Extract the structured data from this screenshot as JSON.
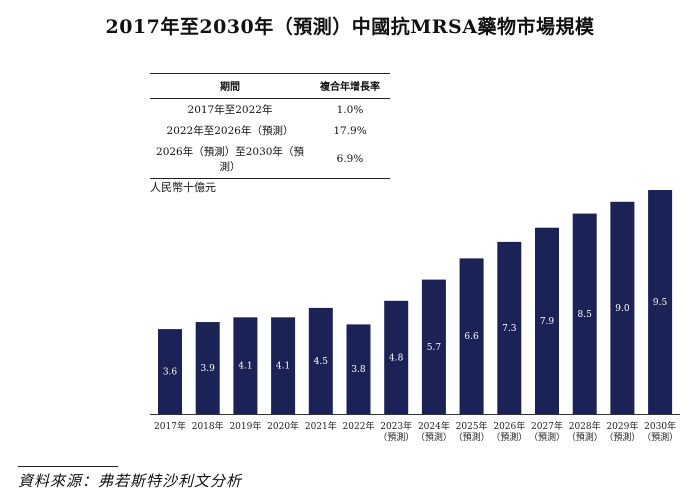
{
  "title": "2017年至2030年（預測）中國抗MRSA藥物市場規模",
  "cagr_table": {
    "headers": [
      "期間",
      "複合年增長率"
    ],
    "rows": [
      {
        "period": "2017年至2022年",
        "rate": "1.0%"
      },
      {
        "period": "2022年至2026年（預測）",
        "rate": "17.9%"
      },
      {
        "period": "2026年（預測）至2030年（預測）",
        "rate": "6.9%"
      }
    ]
  },
  "source": "資料來源：弗若斯特沙利文分析",
  "colors": {
    "bar": "#1b2256",
    "bar_label": "#ffffff"
  },
  "chart_data": {
    "type": "bar",
    "title": "2017年至2030年（預測）中國抗MRSA藥物市場規模",
    "ylabel": "人民幣十億元",
    "xlabel": "",
    "categories": [
      "2017年",
      "2018年",
      "2019年",
      "2020年",
      "2021年",
      "2022年",
      "2023年",
      "2024年",
      "2025年",
      "2026年",
      "2027年",
      "2028年",
      "2029年",
      "2030年"
    ],
    "category_notes": [
      "",
      "",
      "",
      "",
      "",
      "",
      "（預測）",
      "（預測）",
      "（預測）",
      "（預測）",
      "（預測）",
      "（預測）",
      "（預測）",
      "（預測）"
    ],
    "values": [
      3.6,
      3.9,
      4.1,
      4.1,
      4.5,
      3.8,
      4.8,
      5.7,
      6.6,
      7.3,
      7.9,
      8.5,
      9.0,
      9.5
    ],
    "value_labels": [
      "3.6",
      "3.9",
      "4.1",
      "4.1",
      "4.5",
      "3.8",
      "4.8",
      "5.7",
      "6.6",
      "7.3",
      "7.9",
      "8.5",
      "9.0",
      "9.5"
    ],
    "ylim": [
      0,
      9.5
    ],
    "grid": false
  }
}
